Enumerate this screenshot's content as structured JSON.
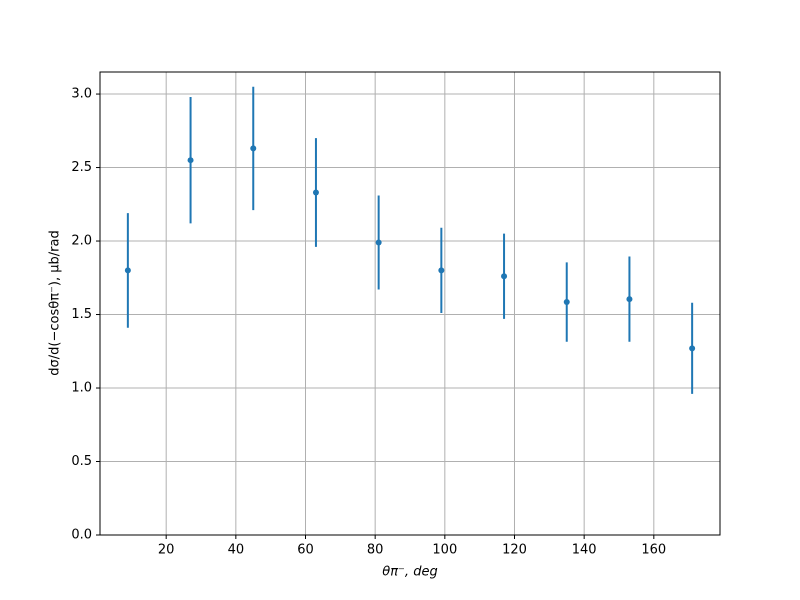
{
  "chart_data": {
    "type": "errorbar",
    "x_label": "θπ⁻, deg",
    "y_label": "dσ/d(−cosθπ⁻), μb/rad",
    "x": [
      9,
      27,
      45,
      63,
      81,
      99,
      117,
      135,
      153,
      171
    ],
    "values": [
      1.8,
      2.55,
      2.63,
      2.33,
      1.99,
      1.8,
      1.76,
      1.585,
      1.605,
      1.27
    ],
    "errors": [
      0.39,
      0.43,
      0.42,
      0.37,
      0.32,
      0.29,
      0.29,
      0.27,
      0.29,
      0.31
    ],
    "color": "#1f77b4",
    "xlim": [
      1,
      179
    ],
    "ylim": [
      0,
      3.15
    ],
    "xticks": [
      20,
      40,
      60,
      80,
      100,
      120,
      140,
      160
    ],
    "yticks": [
      {
        "value": 0,
        "label": "0.0"
      },
      {
        "value": 0.5,
        "label": "0.5"
      },
      {
        "value": 1,
        "label": "1.0"
      },
      {
        "value": 1.5,
        "label": "1.5"
      },
      {
        "value": 2,
        "label": "2.0"
      },
      {
        "value": 2.5,
        "label": "2.5"
      },
      {
        "value": 3,
        "label": "3.0"
      }
    ],
    "grid": true
  }
}
